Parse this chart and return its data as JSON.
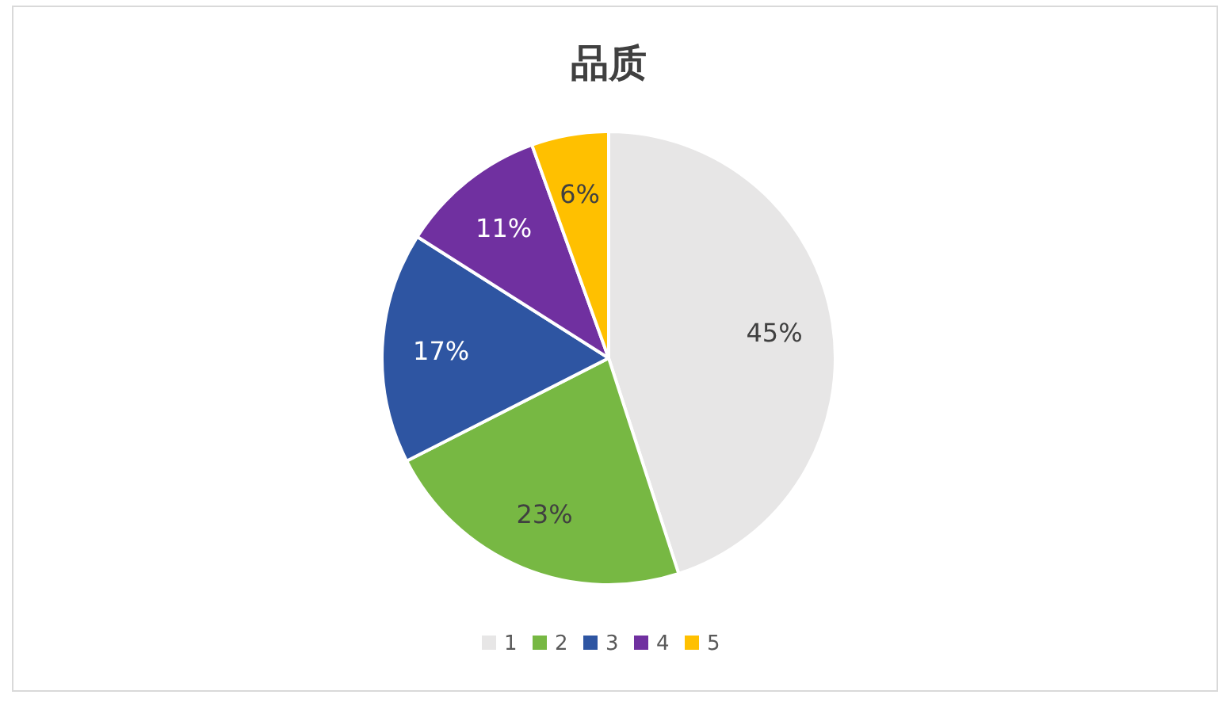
{
  "chart_data": {
    "type": "pie",
    "title": "品质",
    "categories": [
      "1",
      "2",
      "3",
      "4",
      "5"
    ],
    "values": [
      45,
      22.5,
      16.5,
      10.5,
      5.5
    ],
    "value_labels": [
      "45%",
      "23%",
      "17%",
      "11%",
      "6%"
    ],
    "colors": [
      "#e7e6e6",
      "#77b843",
      "#2e55a2",
      "#7030a0",
      "#ffc000"
    ],
    "legend": "bottom"
  }
}
